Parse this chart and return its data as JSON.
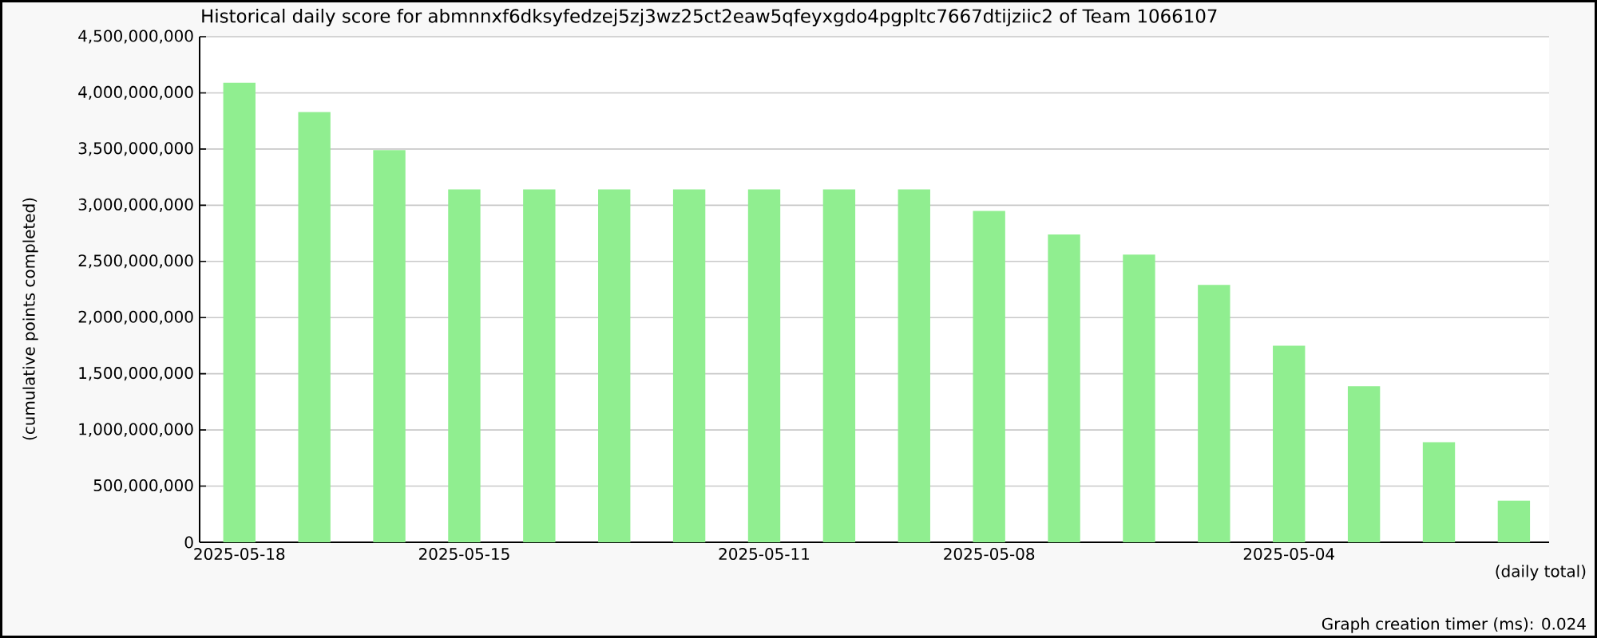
{
  "chart_data": {
    "type": "bar",
    "title": "Historical daily score for abmnnxf6dksyfedzej5zj3wz25ct2eaw5qfeyxgdo4pgpltc7667dtijziic2 of Team 1066107",
    "xlabel": "(daily total)",
    "ylabel": "(cumulative points completed)",
    "categories": [
      "2025-05-18",
      null,
      null,
      "2025-05-15",
      null,
      null,
      null,
      "2025-05-11",
      null,
      null,
      "2025-05-08",
      null,
      null,
      null,
      "2025-05-04",
      null,
      null,
      null
    ],
    "values": [
      4090000000,
      3830000000,
      3490000000,
      3140000000,
      3140000000,
      3140000000,
      3140000000,
      3140000000,
      3140000000,
      3140000000,
      2950000000,
      2740000000,
      2560000000,
      2290000000,
      1750000000,
      1390000000,
      890000000,
      370000000
    ],
    "color": "#90ee90",
    "ylim": [
      0,
      4500000000
    ],
    "yticks": [
      0,
      {
        "value": 500000000,
        "label": "500,000,000"
      },
      {
        "value": 1000000000,
        "label": "1,000,000,000"
      },
      {
        "value": 1500000000,
        "label": "1,500,000,000"
      },
      {
        "value": 2000000000,
        "label": "2,000,000,000"
      },
      {
        "value": 2500000000,
        "label": "2,500,000,000"
      },
      {
        "value": 3000000000,
        "label": "3,000,000,000"
      },
      {
        "value": 3500000000,
        "label": "3,500,000,000"
      },
      {
        "value": 4000000000,
        "label": "4,000,000,000"
      },
      {
        "value": 4500000000,
        "label": "4,500,000,000"
      }
    ],
    "grid": "y",
    "annotations": [
      "Graph creation timer (ms): 0.024"
    ]
  }
}
